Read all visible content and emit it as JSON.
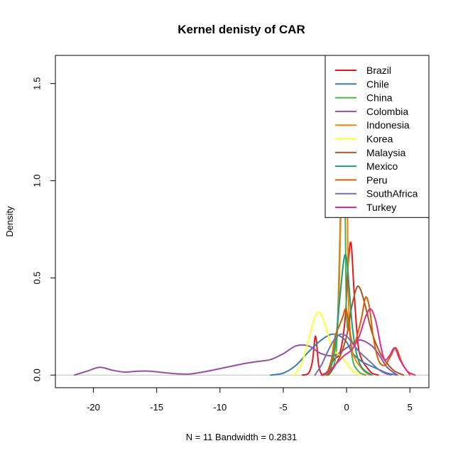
{
  "chart_data": {
    "type": "line",
    "title": "Kernel denisty of CAR",
    "xlabel": "N = 11   Bandwidth = 0.2831",
    "ylabel": "Density",
    "xlim": [
      -23,
      6.5
    ],
    "ylim": [
      -0.065,
      1.645
    ],
    "x_ticks": [
      -20,
      -15,
      -10,
      -5,
      0,
      5
    ],
    "x_tick_labels": [
      "-20",
      "-15",
      "-10",
      "-5",
      "0",
      "5"
    ],
    "y_ticks": [
      0.0,
      0.5,
      1.0,
      1.5
    ],
    "y_tick_labels": [
      "0.0",
      "0.5",
      "1.0",
      "1.5"
    ],
    "baseline": 0,
    "legend_position": "top-right",
    "series": [
      {
        "name": "Brazil",
        "color": "#E41A1C",
        "x": [
          -3.5,
          -3.0,
          -2.7,
          -2.45,
          -2.2,
          -1.9,
          -1.5,
          -1.0,
          -0.5,
          -0.1,
          0.1,
          0.35,
          0.6,
          0.9,
          1.2,
          1.6,
          2.0,
          2.5
        ],
        "y": [
          0.0,
          0.01,
          0.07,
          0.2,
          0.05,
          0.0,
          0.02,
          0.08,
          0.12,
          0.3,
          0.55,
          0.68,
          0.42,
          0.16,
          0.08,
          0.04,
          0.01,
          0.0
        ]
      },
      {
        "name": "Chile",
        "color": "#377EB8",
        "x": [
          -6.0,
          -5.0,
          -4.0,
          -3.0,
          -2.0,
          -1.2,
          -0.5,
          0.0,
          0.4,
          0.8,
          1.2,
          1.8,
          2.5,
          3.2,
          4.0
        ],
        "y": [
          0.0,
          0.01,
          0.05,
          0.12,
          0.18,
          0.21,
          0.2,
          0.17,
          0.12,
          0.09,
          0.07,
          0.05,
          0.03,
          0.01,
          0.0
        ]
      },
      {
        "name": "China",
        "color": "#4DAF4A",
        "x": [
          -1.4,
          -1.0,
          -0.75,
          -0.5,
          -0.3,
          -0.15,
          -0.05,
          0.05,
          0.2,
          0.35,
          0.55,
          0.8,
          1.1,
          1.5
        ],
        "y": [
          0.0,
          0.05,
          0.2,
          0.8,
          1.47,
          1.1,
          0.45,
          0.25,
          0.28,
          0.14,
          0.06,
          0.03,
          0.01,
          0.0
        ]
      },
      {
        "name": "Colombia",
        "color": "#984EA3",
        "x": [
          -21.5,
          -20.5,
          -19.5,
          -18.5,
          -17.5,
          -16.5,
          -15.5,
          -14.0,
          -12.5,
          -11.0,
          -9.5,
          -8.0,
          -7.0,
          -6.0,
          -5.0,
          -4.0,
          -3.0,
          -2.0,
          -1.0,
          0.0,
          1.0,
          2.0,
          2.6,
          3.2,
          4.0
        ],
        "y": [
          0.0,
          0.02,
          0.04,
          0.025,
          0.015,
          0.02,
          0.02,
          0.01,
          0.005,
          0.02,
          0.04,
          0.06,
          0.07,
          0.08,
          0.11,
          0.15,
          0.15,
          0.11,
          0.1,
          0.14,
          0.18,
          0.15,
          0.1,
          0.04,
          0.0
        ]
      },
      {
        "name": "Indonesia",
        "color": "#FF7F00",
        "x": [
          -1.6,
          -1.2,
          -0.9,
          -0.6,
          -0.35,
          -0.15,
          -0.05,
          0.05,
          0.15,
          0.4,
          0.7,
          1.0,
          1.4,
          1.8
        ],
        "y": [
          0.0,
          0.05,
          0.15,
          0.4,
          1.2,
          1.5,
          1.57,
          1.0,
          0.4,
          0.15,
          0.08,
          0.05,
          0.02,
          0.0
        ]
      },
      {
        "name": "Korea",
        "color": "#FFFF33",
        "x": [
          -4.2,
          -3.6,
          -3.0,
          -2.5,
          -2.1,
          -1.7,
          -1.3,
          -0.9,
          -0.5,
          0.0,
          0.5,
          1.0
        ],
        "y": [
          0.0,
          0.05,
          0.18,
          0.3,
          0.32,
          0.26,
          0.17,
          0.12,
          0.1,
          0.06,
          0.02,
          0.0
        ]
      },
      {
        "name": "Malaysia",
        "color": "#A65628",
        "x": [
          -1.5,
          -1.0,
          -0.5,
          0.0,
          0.4,
          0.8,
          1.1,
          1.5,
          2.0,
          2.6,
          3.2,
          3.8,
          4.5
        ],
        "y": [
          0.0,
          0.04,
          0.1,
          0.2,
          0.35,
          0.45,
          0.44,
          0.35,
          0.22,
          0.12,
          0.06,
          0.02,
          0.0
        ]
      },
      {
        "name": "Mexico",
        "color": "#1B9E77",
        "x": [
          -1.8,
          -1.3,
          -0.9,
          -0.5,
          -0.2,
          0.0,
          0.2,
          0.45,
          0.75,
          1.1,
          1.5,
          2.0
        ],
        "y": [
          0.0,
          0.03,
          0.15,
          0.42,
          0.6,
          0.6,
          0.45,
          0.25,
          0.12,
          0.05,
          0.02,
          0.0
        ]
      },
      {
        "name": "Peru",
        "color": "#D95F02",
        "x": [
          -1.6,
          -1.2,
          -0.9,
          -0.6,
          -0.3,
          -0.1,
          0.1,
          0.3,
          0.6,
          0.9,
          1.2,
          1.5,
          1.8,
          2.1,
          2.5,
          3.0,
          3.5,
          3.9,
          4.4,
          5.0
        ],
        "y": [
          0.0,
          0.08,
          0.2,
          0.25,
          0.3,
          0.34,
          0.3,
          0.2,
          0.16,
          0.22,
          0.3,
          0.4,
          0.35,
          0.2,
          0.08,
          0.05,
          0.1,
          0.14,
          0.06,
          0.0
        ]
      },
      {
        "name": "SouthAfrica",
        "color": "#7570B3",
        "x": [
          -2.5,
          -2.0,
          -1.5,
          -1.0,
          -0.5,
          0.0,
          0.5,
          1.0,
          1.5,
          2.0,
          2.5,
          3.0,
          3.5
        ],
        "y": [
          0.0,
          0.05,
          0.12,
          0.18,
          0.21,
          0.2,
          0.16,
          0.12,
          0.09,
          0.06,
          0.03,
          0.01,
          0.0
        ]
      },
      {
        "name": "Turkey",
        "color": "#E7298A",
        "x": [
          -2.0,
          -1.4,
          -0.8,
          -0.2,
          0.4,
          1.0,
          1.5,
          1.9,
          2.3,
          2.7,
          3.0,
          3.4,
          3.8,
          4.2,
          4.8,
          5.4
        ],
        "y": [
          0.0,
          0.02,
          0.06,
          0.1,
          0.13,
          0.2,
          0.3,
          0.34,
          0.28,
          0.15,
          0.08,
          0.1,
          0.14,
          0.08,
          0.02,
          0.0
        ]
      }
    ]
  }
}
